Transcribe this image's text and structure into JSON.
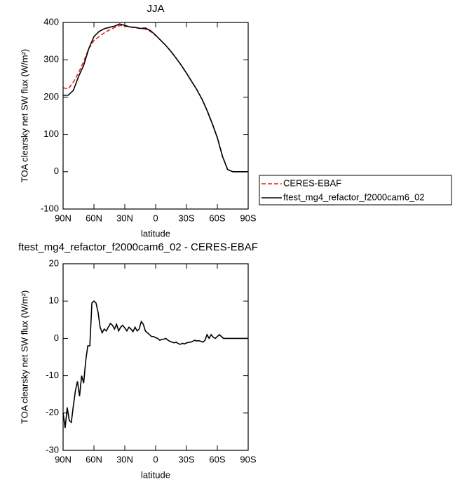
{
  "chart_data": [
    {
      "type": "line",
      "title": "JJA",
      "xlabel": "latitude",
      "ylabel": "TOA clearsky net SW flux (W/m²)",
      "x": [
        90,
        85,
        80,
        75,
        70,
        65,
        60,
        55,
        50,
        45,
        40,
        35,
        30,
        25,
        20,
        15,
        10,
        5,
        0,
        -5,
        -10,
        -15,
        -20,
        -25,
        -30,
        -35,
        -40,
        -45,
        -50,
        -55,
        -60,
        -65,
        -70,
        -75,
        -80,
        -85,
        -90
      ],
      "series": [
        {
          "name": "CERES-EBAF",
          "color": "#e8201c",
          "style": "dashed",
          "values": [
            225,
            222,
            240,
            265,
            295,
            330,
            352,
            362,
            372,
            380,
            386,
            392,
            390,
            388,
            386,
            384,
            382,
            376,
            365,
            352,
            338,
            322,
            304,
            285,
            264,
            242,
            220,
            195,
            165,
            130,
            92,
            42,
            6,
            0,
            0,
            0,
            0
          ]
        },
        {
          "name": "ftest_mg4_refactor_f2000cam6_02",
          "color": "#000000",
          "style": "solid",
          "values": [
            205,
            205,
            218,
            255,
            285,
            330,
            362,
            376,
            383,
            387,
            390,
            396,
            392,
            388,
            387,
            384,
            385,
            378,
            366,
            352,
            338,
            322,
            304,
            285,
            264,
            242,
            220,
            195,
            164,
            129,
            91,
            41,
            6,
            0,
            0,
            0,
            0
          ]
        }
      ],
      "xlim": [
        90,
        -90
      ],
      "xticks": [
        {
          "value": 90,
          "label": "90N"
        },
        {
          "value": 60,
          "label": "60N"
        },
        {
          "value": 30,
          "label": "30N"
        },
        0,
        {
          "value": -30,
          "label": "30S"
        },
        {
          "value": -60,
          "label": "60S"
        },
        {
          "value": -90,
          "label": "90S"
        }
      ],
      "ylim": [
        -100,
        400
      ],
      "yticks": [
        -100,
        0,
        100,
        200,
        300,
        400
      ],
      "legend": "outside-right"
    },
    {
      "type": "line",
      "title": "ftest_mg4_refactor_f2000cam6_02 - CERES-EBAF",
      "xlabel": "latitude",
      "ylabel": "TOA clearsky net SW flux (W/m²)",
      "x": [
        90,
        88,
        86,
        84,
        82,
        80,
        78,
        76,
        74,
        72,
        70,
        68,
        66,
        64,
        62,
        60,
        58,
        56,
        54,
        52,
        50,
        48,
        46,
        44,
        42,
        40,
        38,
        36,
        34,
        32,
        30,
        28,
        26,
        24,
        22,
        20,
        18,
        16,
        14,
        12,
        10,
        8,
        6,
        4,
        2,
        0,
        -2,
        -4,
        -6,
        -8,
        -10,
        -12,
        -14,
        -16,
        -18,
        -20,
        -22,
        -24,
        -26,
        -28,
        -30,
        -32,
        -34,
        -36,
        -38,
        -40,
        -42,
        -44,
        -46,
        -48,
        -50,
        -52,
        -54,
        -56,
        -58,
        -60,
        -62,
        -64,
        -66,
        -68,
        -70,
        -72,
        -74,
        -76,
        -78,
        -80,
        -82,
        -84,
        -86,
        -88,
        -90
      ],
      "series": [
        {
          "color": "#000000",
          "style": "solid",
          "values": [
            -20,
            -24,
            -18.5,
            -22,
            -22.5,
            -18,
            -14,
            -11.5,
            -15.5,
            -10,
            -12,
            -6,
            -2,
            -2,
            9.5,
            10,
            9.5,
            7,
            3,
            1.5,
            2.5,
            2,
            3,
            4,
            3.5,
            2.5,
            3.8,
            2,
            3,
            3.5,
            2.8,
            2,
            3,
            2.5,
            1.8,
            3,
            2,
            2.5,
            4.5,
            3.8,
            2,
            1.5,
            1,
            0.5,
            0.5,
            0.2,
            0,
            -0.5,
            -0.3,
            -0.2,
            0,
            -0.5,
            -0.8,
            -1,
            -1.2,
            -1,
            -1.4,
            -1.6,
            -1.3,
            -1.5,
            -1.2,
            -1.1,
            -1,
            -0.8,
            -0.5,
            -0.7,
            -0.6,
            -0.8,
            -1,
            -0.5,
            1,
            0,
            1,
            0.3,
            0,
            0.5,
            1,
            0.5,
            0,
            0,
            0,
            0,
            0,
            0,
            0,
            0,
            0,
            0,
            0,
            0,
            0
          ]
        }
      ],
      "xlim": [
        90,
        -90
      ],
      "xticks": [
        {
          "value": 90,
          "label": "90N"
        },
        {
          "value": 60,
          "label": "60N"
        },
        {
          "value": 30,
          "label": "30N"
        },
        0,
        {
          "value": -30,
          "label": "30S"
        },
        {
          "value": -60,
          "label": "60S"
        },
        {
          "value": -90,
          "label": "90S"
        }
      ],
      "ylim": [
        -30,
        20
      ],
      "yticks": [
        -30,
        -20,
        -10,
        0,
        10,
        20
      ]
    }
  ]
}
